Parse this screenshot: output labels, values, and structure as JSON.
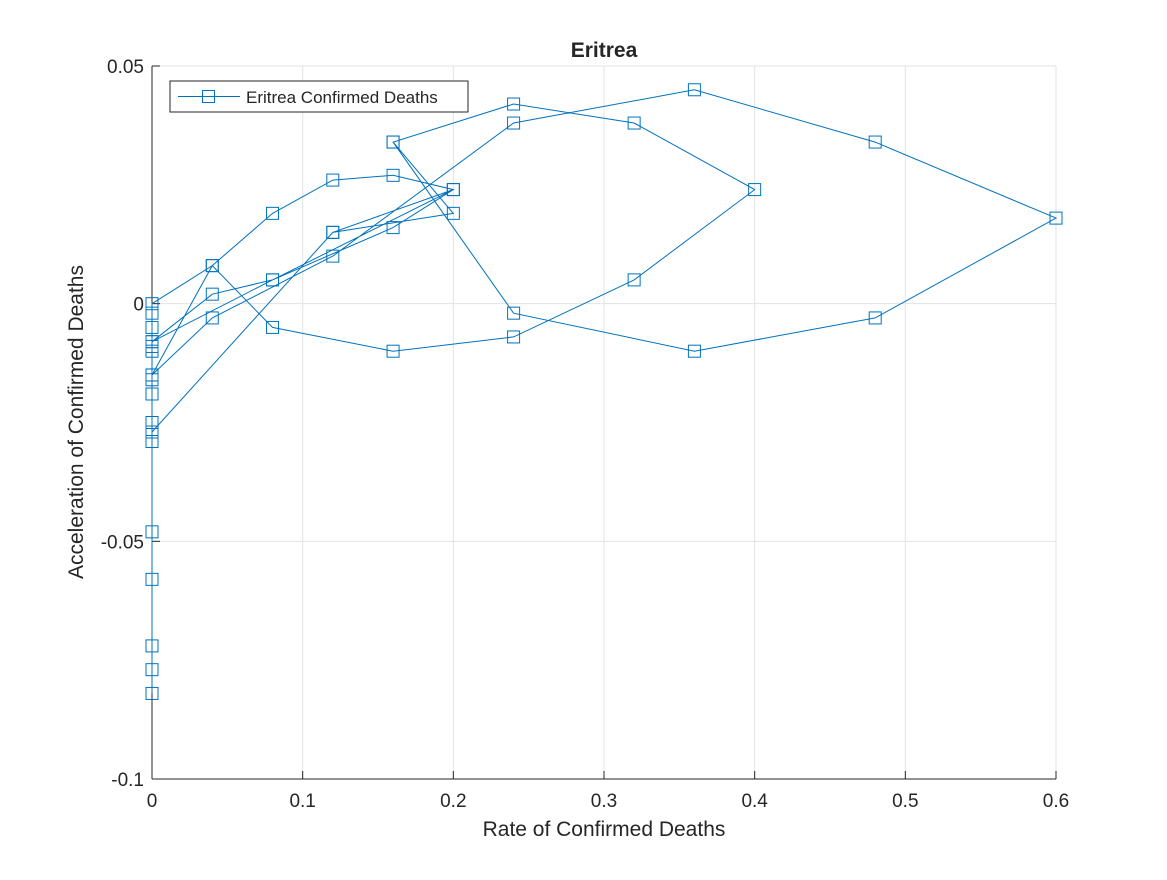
{
  "chart_data": {
    "type": "line",
    "title": "Eritrea",
    "xlabel": "Rate of Confirmed Deaths",
    "ylabel": "Acceleration of Confirmed Deaths",
    "xlim": [
      0,
      0.6
    ],
    "ylim": [
      -0.1,
      0.05
    ],
    "xticks": [
      0,
      0.1,
      0.2,
      0.3,
      0.4,
      0.5,
      0.6
    ],
    "xtick_labels": [
      "0",
      "0.1",
      "0.2",
      "0.3",
      "0.4",
      "0.5",
      "0.6"
    ],
    "yticks": [
      -0.1,
      -0.05,
      0,
      0.05
    ],
    "ytick_labels": [
      "-0.1",
      "-0.05",
      "0",
      "0.05"
    ],
    "grid": true,
    "legend_position": "top-left",
    "series": [
      {
        "name": "Eritrea Confirmed Deaths",
        "color": "#0072BD",
        "marker": "square",
        "points": [
          [
            0,
            -0.082
          ],
          [
            0,
            -0.077
          ],
          [
            0,
            -0.072
          ],
          [
            0,
            -0.058
          ],
          [
            0,
            -0.048
          ],
          [
            0,
            -0.029
          ],
          [
            0,
            -0.027
          ],
          [
            0,
            -0.025
          ],
          [
            0,
            -0.019
          ],
          [
            0,
            -0.016
          ],
          [
            0,
            -0.015
          ],
          [
            0,
            -0.01
          ],
          [
            0,
            -0.009
          ],
          [
            0,
            -0.008
          ],
          [
            0,
            -0.005
          ],
          [
            0,
            -0.002
          ],
          [
            0,
            0.0
          ],
          [
            0.04,
            0.008
          ],
          [
            0.08,
            -0.005
          ],
          [
            0.16,
            -0.01
          ],
          [
            0.24,
            -0.007
          ],
          [
            0.32,
            0.005
          ],
          [
            0.4,
            0.024
          ],
          [
            0.32,
            0.038
          ],
          [
            0.24,
            0.042
          ],
          [
            0.16,
            0.034
          ],
          [
            0.24,
            -0.002
          ],
          [
            0.36,
            -0.01
          ],
          [
            0.48,
            -0.003
          ],
          [
            0.6,
            0.018
          ],
          [
            0.48,
            0.034
          ],
          [
            0.36,
            0.045
          ],
          [
            0.24,
            0.038
          ],
          [
            0.12,
            0.01
          ],
          [
            0.04,
            -0.003
          ],
          [
            0,
            -0.015
          ],
          [
            0.04,
            0.008
          ],
          [
            0.08,
            0.019
          ],
          [
            0.12,
            0.026
          ],
          [
            0.16,
            0.027
          ],
          [
            0.2,
            0.024
          ],
          [
            0.08,
            0.005
          ],
          [
            0.04,
            0.002
          ],
          [
            0,
            -0.008
          ],
          [
            0.08,
            0.005
          ],
          [
            0.16,
            0.016
          ],
          [
            0.2,
            0.024
          ],
          [
            0.12,
            0.015
          ],
          [
            0,
            -0.027
          ],
          [
            0.12,
            0.015
          ],
          [
            0.2,
            0.019
          ],
          [
            0.16,
            0.034
          ]
        ]
      }
    ]
  }
}
